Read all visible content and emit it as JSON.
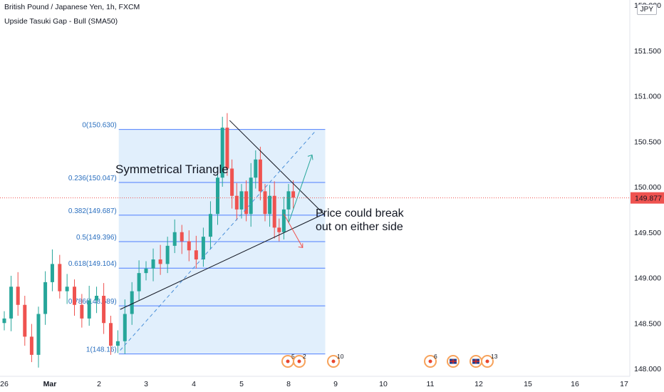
{
  "header": {
    "title": "British Pound / Japanese Yen, 1h, FXCM",
    "indicator": "Upside Tasuki Gap - Bull (SMA50)",
    "currency_badge": "JPY"
  },
  "colors": {
    "up": "#26a69a",
    "down": "#ef5350",
    "fib_fill": "#dcecfb",
    "fib_line": "#2962ff",
    "price_tag": "#ef5350",
    "trend": "#131722",
    "arrow_up": "#26a69a",
    "arrow_down": "#ef5350"
  },
  "annotations": {
    "pattern_title": "Symmetrical Triangle",
    "note_line1": "Price could break",
    "note_line2": "out on either side"
  },
  "events": [
    {
      "icon": "economic-event-icon",
      "count": "5"
    },
    {
      "icon": "economic-event-icon",
      "count": "2"
    },
    {
      "icon": "economic-event-icon",
      "count": "10"
    },
    {
      "icon": "economic-event-icon",
      "count": "6"
    },
    {
      "icon": "uk-flag-icon",
      "count": ""
    },
    {
      "icon": "uk-flag-icon",
      "count": ""
    },
    {
      "icon": "economic-event-icon",
      "count": "13"
    }
  ],
  "chart_data": {
    "type": "candlestick",
    "symbol": "GBPJPY",
    "timeframe": "1h",
    "ylim": [
      147.98,
      152.1
    ],
    "y_ticks": [
      "148.000",
      "148.500",
      "149.000",
      "149.500",
      "150.000",
      "150.500",
      "151.000",
      "151.500",
      "152.000"
    ],
    "x_ticks": [
      {
        "label": "26",
        "day": 0
      },
      {
        "label": "Mar",
        "day": 1
      },
      {
        "label": "2",
        "day": 2
      },
      {
        "label": "3",
        "day": 3
      },
      {
        "label": "4",
        "day": 4
      },
      {
        "label": "5",
        "day": 5
      },
      {
        "label": "8",
        "day": 6
      },
      {
        "label": "9",
        "day": 7
      },
      {
        "label": "10",
        "day": 8
      },
      {
        "label": "11",
        "day": 9
      },
      {
        "label": "12",
        "day": 10
      },
      {
        "label": "15",
        "day": 11
      },
      {
        "label": "16",
        "day": 12
      },
      {
        "label": "17",
        "day": 13
      }
    ],
    "last_price": "149.877",
    "fibonacci": [
      {
        "label": "0(150.630)",
        "price": 150.63
      },
      {
        "label": "0.236(150.047)",
        "price": 150.047
      },
      {
        "label": "0.382(149.687)",
        "price": 149.687
      },
      {
        "label": "0.5(149.396)",
        "price": 149.396
      },
      {
        "label": "0.618(149.104)",
        "price": 149.104
      },
      {
        "label": "0.786(148.689)",
        "price": 148.689
      },
      {
        "label": "1(148.16)",
        "price": 148.16
      }
    ],
    "fib_range_days": [
      2.42,
      6.78
    ],
    "trendlines": [
      {
        "from": [
          2.45,
          148.65
        ],
        "to": [
          6.75,
          149.7
        ]
      },
      {
        "from": [
          4.75,
          150.73
        ],
        "to": [
          6.75,
          149.7
        ]
      }
    ],
    "projection_line": {
      "from": [
        2.45,
        148.2
      ],
      "to": [
        6.55,
        150.6
      ]
    },
    "closes": [
      {
        "day": 0.0,
        "close": 148.55
      },
      {
        "day": 0.15,
        "close": 148.9
      },
      {
        "day": 0.3,
        "close": 148.7
      },
      {
        "day": 0.45,
        "close": 148.35
      },
      {
        "day": 0.6,
        "close": 148.15
      },
      {
        "day": 0.75,
        "close": 148.6
      },
      {
        "day": 0.9,
        "close": 148.95
      },
      {
        "day": 1.05,
        "close": 149.15
      },
      {
        "day": 1.2,
        "close": 148.85
      },
      {
        "day": 1.35,
        "close": 148.9
      },
      {
        "day": 1.5,
        "close": 148.7
      },
      {
        "day": 1.65,
        "close": 148.55
      },
      {
        "day": 1.8,
        "close": 148.75
      },
      {
        "day": 1.95,
        "close": 148.8
      },
      {
        "day": 2.1,
        "close": 148.5
      },
      {
        "day": 2.25,
        "close": 148.25
      },
      {
        "day": 2.4,
        "close": 148.3
      },
      {
        "day": 2.55,
        "close": 148.6
      },
      {
        "day": 2.7,
        "close": 148.85
      },
      {
        "day": 2.85,
        "close": 149.05
      },
      {
        "day": 3.0,
        "close": 149.1
      },
      {
        "day": 3.15,
        "close": 149.2
      },
      {
        "day": 3.3,
        "close": 149.15
      },
      {
        "day": 3.45,
        "close": 149.35
      },
      {
        "day": 3.6,
        "close": 149.5
      },
      {
        "day": 3.75,
        "close": 149.4
      },
      {
        "day": 3.9,
        "close": 149.3
      },
      {
        "day": 4.05,
        "close": 149.2
      },
      {
        "day": 4.2,
        "close": 149.45
      },
      {
        "day": 4.35,
        "close": 149.7
      },
      {
        "day": 4.5,
        "close": 150.1
      },
      {
        "day": 4.6,
        "close": 150.65
      },
      {
        "day": 4.7,
        "close": 150.2
      },
      {
        "day": 4.8,
        "close": 149.9
      },
      {
        "day": 4.9,
        "close": 149.75
      },
      {
        "day": 5.0,
        "close": 149.95
      },
      {
        "day": 5.1,
        "close": 149.7
      },
      {
        "day": 5.2,
        "close": 150.1
      },
      {
        "day": 5.3,
        "close": 150.3
      },
      {
        "day": 5.4,
        "close": 149.95
      },
      {
        "day": 5.5,
        "close": 149.7
      },
      {
        "day": 5.6,
        "close": 149.9
      },
      {
        "day": 5.7,
        "close": 149.55
      },
      {
        "day": 5.8,
        "close": 149.5
      },
      {
        "day": 5.9,
        "close": 149.75
      },
      {
        "day": 6.0,
        "close": 149.95
      },
      {
        "day": 6.1,
        "close": 149.88
      }
    ]
  }
}
